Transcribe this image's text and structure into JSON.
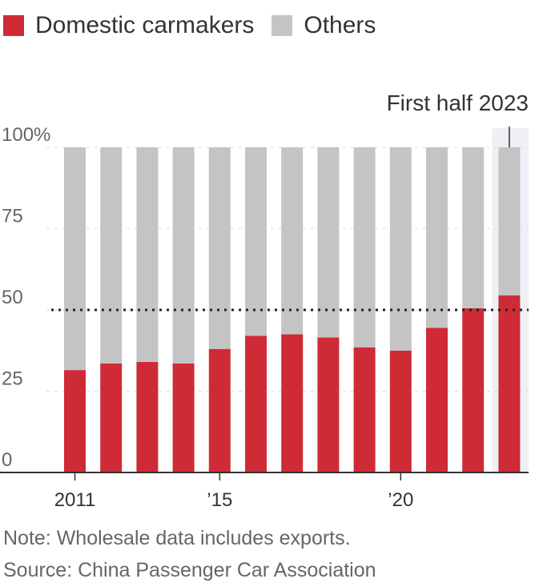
{
  "legend": {
    "items": [
      {
        "label": "Domestic carmakers",
        "color": "#cf2b36"
      },
      {
        "label": "Others",
        "color": "#c4c4c4"
      }
    ]
  },
  "annotation": {
    "text": "First half 2023"
  },
  "note": "Note: Wholesale data includes exports.",
  "source": "Source: China Passenger Car Association",
  "colors": {
    "domestic": "#cf2b36",
    "others": "#c4c4c4",
    "highlight_band": "#eef0f6",
    "axis": "#333333",
    "grid": "#dcdcdc",
    "text": "#333333",
    "muted_text": "#666666"
  },
  "chart_data": {
    "type": "bar",
    "stacked": true,
    "categories": [
      "2011",
      "2012",
      "2013",
      "2014",
      "2015",
      "2016",
      "2017",
      "2018",
      "2019",
      "2020",
      "2021",
      "2022",
      "First half 2023"
    ],
    "series": [
      {
        "name": "Domestic carmakers",
        "values": [
          31.5,
          33.5,
          34,
          33.5,
          38,
          42,
          42.5,
          41.5,
          38.5,
          37.5,
          44.5,
          50.5,
          54.5
        ]
      },
      {
        "name": "Others",
        "values": [
          68.5,
          66.5,
          66,
          66.5,
          62,
          58,
          57.5,
          58.5,
          61.5,
          62.5,
          55.5,
          49.5,
          45.5
        ]
      }
    ],
    "x_tick_labels": [
      {
        "category": "2011",
        "label": "2011"
      },
      {
        "category": "2015",
        "label": "’15"
      },
      {
        "category": "2020",
        "label": "’20"
      }
    ],
    "y_ticks": [
      {
        "value": 100,
        "label": "100%"
      },
      {
        "value": 75,
        "label": "75"
      },
      {
        "value": 50,
        "label": "50"
      },
      {
        "value": 25,
        "label": "25"
      },
      {
        "value": 0,
        "label": "0"
      }
    ],
    "reference_line": {
      "value": 50,
      "style": "dotted"
    },
    "highlight_category": "First half 2023",
    "ylim": [
      0,
      100
    ],
    "legend_position": "top-left",
    "grid": true
  }
}
